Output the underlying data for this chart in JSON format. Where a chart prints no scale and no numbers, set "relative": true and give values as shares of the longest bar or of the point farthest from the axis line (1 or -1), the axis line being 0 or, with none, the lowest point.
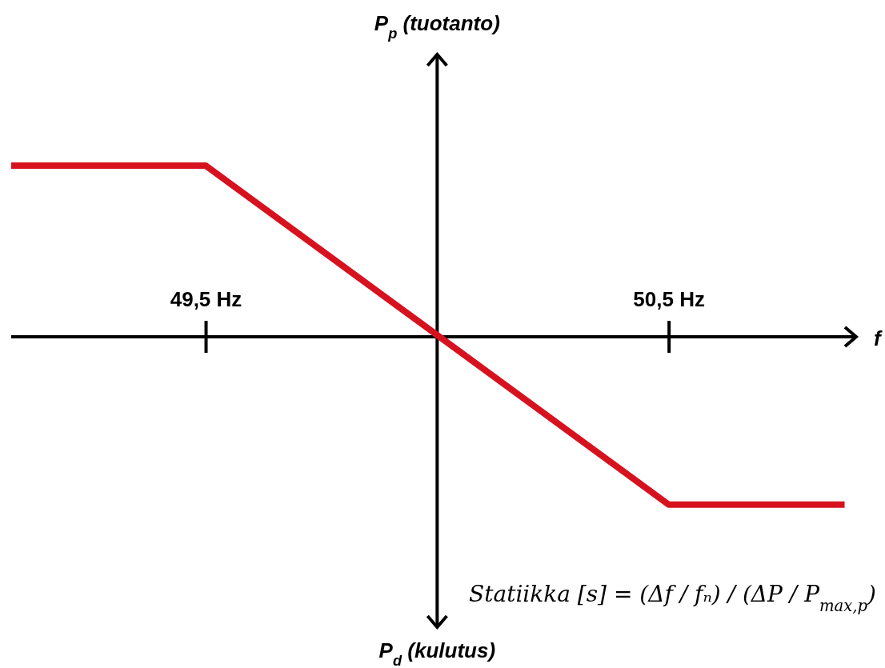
{
  "chart_data": {
    "type": "line",
    "relative": true,
    "xlabel": "f",
    "ref_lines": [
      {
        "axis": "x",
        "value": 50
      }
    ],
    "annotations": [
      "P$_{p}$ (tuotanto)",
      "P$_{d}$ (kulutus)",
      "Statiikka [s] = (Δf / fₙ) / (ΔP / P$_{max,p}$)"
    ],
    "xlim": [
      49.08,
      50.905
    ],
    "xticks": [
      {
        "value": 49.5,
        "label": "49,5 Hz"
      },
      {
        "value": 50.5,
        "label": "50,5 Hz"
      }
    ],
    "series": [
      {
        "color": "#d7121f",
        "x": [
          49.08,
          49.5,
          50.5,
          50.88
        ],
        "values": [
          1,
          1,
          -0.98,
          -0.98
        ]
      }
    ],
    "grid": false,
    "marker": "none",
    "line_style": "solid"
  }
}
